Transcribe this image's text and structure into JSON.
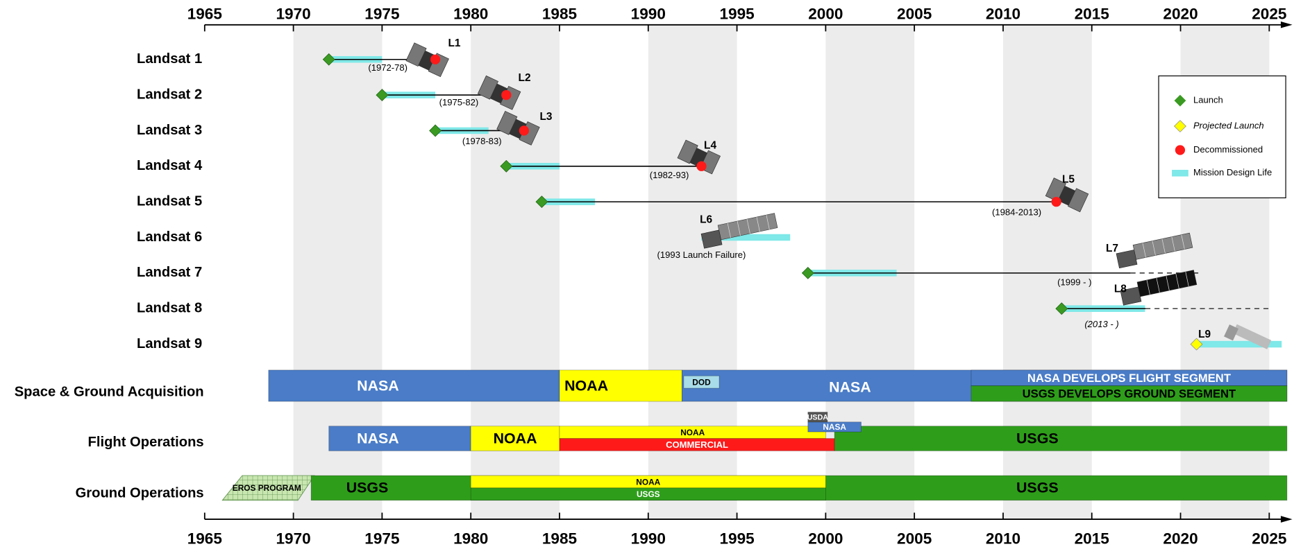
{
  "chart_data": {
    "type": "timeline",
    "xlim": [
      1965,
      2025
    ],
    "xticks": [
      1965,
      1970,
      1975,
      1980,
      1985,
      1990,
      1995,
      2000,
      2005,
      2010,
      2015,
      2020,
      2025
    ],
    "missions": [
      {
        "name": "Landsat 1",
        "label": "L1",
        "period": "(1972-78)",
        "launch": 1972,
        "design_life": [
          1972,
          1975
        ],
        "decommissioned": 1978
      },
      {
        "name": "Landsat 2",
        "label": "L2",
        "period": "(1975-82)",
        "launch": 1975,
        "design_life": [
          1975,
          1978
        ],
        "decommissioned": 1982
      },
      {
        "name": "Landsat 3",
        "label": "L3",
        "period": "(1978-83)",
        "launch": 1978,
        "design_life": [
          1978,
          1981
        ],
        "decommissioned": 1983
      },
      {
        "name": "Landsat 4",
        "label": "L4",
        "period": "(1982-93)",
        "launch": 1982,
        "design_life": [
          1982,
          1985
        ],
        "decommissioned": 1993
      },
      {
        "name": "Landsat 5",
        "label": "L5",
        "period": "(1984-2013)",
        "launch": 1984,
        "design_life": [
          1984,
          1987
        ],
        "decommissioned": 2013
      },
      {
        "name": "Landsat 6",
        "label": "L6",
        "period": "(1993 Launch Failure)",
        "design_life": [
          1993,
          1998
        ]
      },
      {
        "name": "Landsat 7",
        "label": "L7",
        "period": "(1999 -      )",
        "launch": 1999,
        "design_life": [
          1999,
          2004
        ],
        "extended_to": 2021
      },
      {
        "name": "Landsat 8",
        "label": "L8",
        "period": "(2013 -      )",
        "launch": 2013.3,
        "design_life": [
          2013.3,
          2018
        ],
        "extended_to": 2025
      },
      {
        "name": "Landsat 9",
        "label": "L9",
        "projected_launch": 2020.9,
        "design_life": [
          2020.9,
          2025.7
        ]
      }
    ],
    "legend": [
      "Launch",
      "Projected Launch",
      "Decommissioned",
      "Mission Design Life"
    ],
    "colors": {
      "launch": "#3a9a22",
      "projected_launch": "#ffff00",
      "decommissioned": "#ff1a1a",
      "design_life": "#7fe8e8"
    },
    "bands": [
      {
        "name": "Space & Ground Acquisition",
        "segments": [
          {
            "label": "NASA",
            "start": 1968.6,
            "end": 1985,
            "color": "#4a7cc7"
          },
          {
            "label": "NOAA",
            "start": 1985,
            "end": 1991.9,
            "color": "#ffff00"
          },
          {
            "label": "NASA",
            "start": 1991.9,
            "end": 2026,
            "color": "#4a7cc7"
          },
          {
            "label": "DOD",
            "start": 1992,
            "end": 1994,
            "color": "#a8dce8"
          },
          {
            "label": "NASA DEVELOPS FLIGHT SEGMENT",
            "start": 2008.2,
            "end": 2026,
            "color": "#4a7cc7"
          },
          {
            "label": "USGS DEVELOPS GROUND SEGMENT",
            "start": 2008.2,
            "end": 2026,
            "color": "#2e9e1a"
          }
        ]
      },
      {
        "name": "Flight Operations",
        "segments": [
          {
            "label": "NASA",
            "start": 1972,
            "end": 1980,
            "color": "#4a7cc7"
          },
          {
            "label": "NOAA",
            "start": 1980,
            "end": 1985,
            "color": "#ffff00"
          },
          {
            "label": "NOAA",
            "start": 1985,
            "end": 2000,
            "color": "#ffff00"
          },
          {
            "label": "COMMERCIAL",
            "start": 1985,
            "end": 2000.5,
            "color": "#ff1a1a"
          },
          {
            "label": "USDA",
            "start": 1999,
            "end": 2000.1,
            "color": "#555555"
          },
          {
            "label": "NASA",
            "start": 1999,
            "end": 2002,
            "color": "#4a7cc7"
          },
          {
            "label": "USGS",
            "start": 2000.5,
            "end": 2026,
            "color": "#2e9e1a"
          }
        ]
      },
      {
        "name": "Ground Operations",
        "segments": [
          {
            "label": "EROS PROGRAM",
            "start": 1966,
            "end": 1971,
            "color": "#c8e6b0"
          },
          {
            "label": "USGS",
            "start": 1971,
            "end": 2026,
            "color": "#2e9e1a"
          },
          {
            "label": "NOAA",
            "start": 1980,
            "end": 2000,
            "color": "#ffff00"
          },
          {
            "label": "USGS",
            "start": 1980,
            "end": 2000,
            "color": "#2e9e1a"
          }
        ]
      }
    ]
  }
}
